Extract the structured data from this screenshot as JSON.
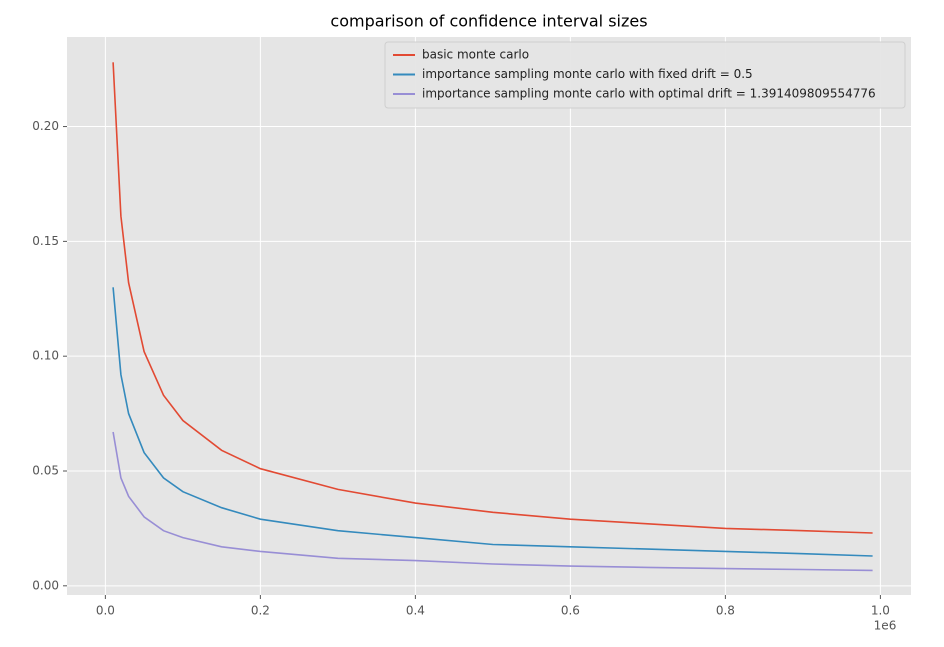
{
  "chart_data": {
    "type": "line",
    "title": "comparison of confidence interval sizes",
    "x": [
      10000,
      20000,
      30000,
      50000,
      75000,
      100000,
      150000,
      200000,
      300000,
      400000,
      500000,
      600000,
      700000,
      800000,
      900000,
      990000
    ],
    "series": [
      {
        "name": "basic monte carlo",
        "color": "#E24A33",
        "values": [
          0.228,
          0.161,
          0.132,
          0.102,
          0.083,
          0.072,
          0.059,
          0.051,
          0.042,
          0.036,
          0.032,
          0.029,
          0.027,
          0.025,
          0.024,
          0.023
        ]
      },
      {
        "name": "importance sampling monte carlo with fixed drift = 0.5",
        "color": "#348ABD",
        "values": [
          0.13,
          0.092,
          0.075,
          0.058,
          0.047,
          0.041,
          0.034,
          0.029,
          0.024,
          0.021,
          0.018,
          0.017,
          0.016,
          0.015,
          0.014,
          0.013
        ]
      },
      {
        "name": "importance sampling monte carlo with optimal drift = 1.391409809554776",
        "color": "#988ED5",
        "values": [
          0.067,
          0.047,
          0.039,
          0.03,
          0.024,
          0.021,
          0.017,
          0.015,
          0.012,
          0.011,
          0.0095,
          0.0086,
          0.008,
          0.0075,
          0.0071,
          0.0067
        ]
      }
    ],
    "xlim": [
      -49500,
      1039500
    ],
    "xticks": [
      {
        "value": 0,
        "label": "0.0"
      },
      {
        "value": 200000,
        "label": "0.2"
      },
      {
        "value": 400000,
        "label": "0.4"
      },
      {
        "value": 600000,
        "label": "0.6"
      },
      {
        "value": 800000,
        "label": "0.8"
      },
      {
        "value": 1000000,
        "label": "1.0"
      }
    ],
    "x_offset_label": "1e6",
    "ylim": [
      -0.004,
      0.239
    ],
    "yticks": [
      {
        "value": 0,
        "label": "0.00"
      },
      {
        "value": 0.05,
        "label": "0.05"
      },
      {
        "value": 0.1,
        "label": "0.10"
      },
      {
        "value": 0.15,
        "label": "0.15"
      },
      {
        "value": 0.2,
        "label": "0.20"
      }
    ],
    "grid": true,
    "legend": "upper right"
  }
}
